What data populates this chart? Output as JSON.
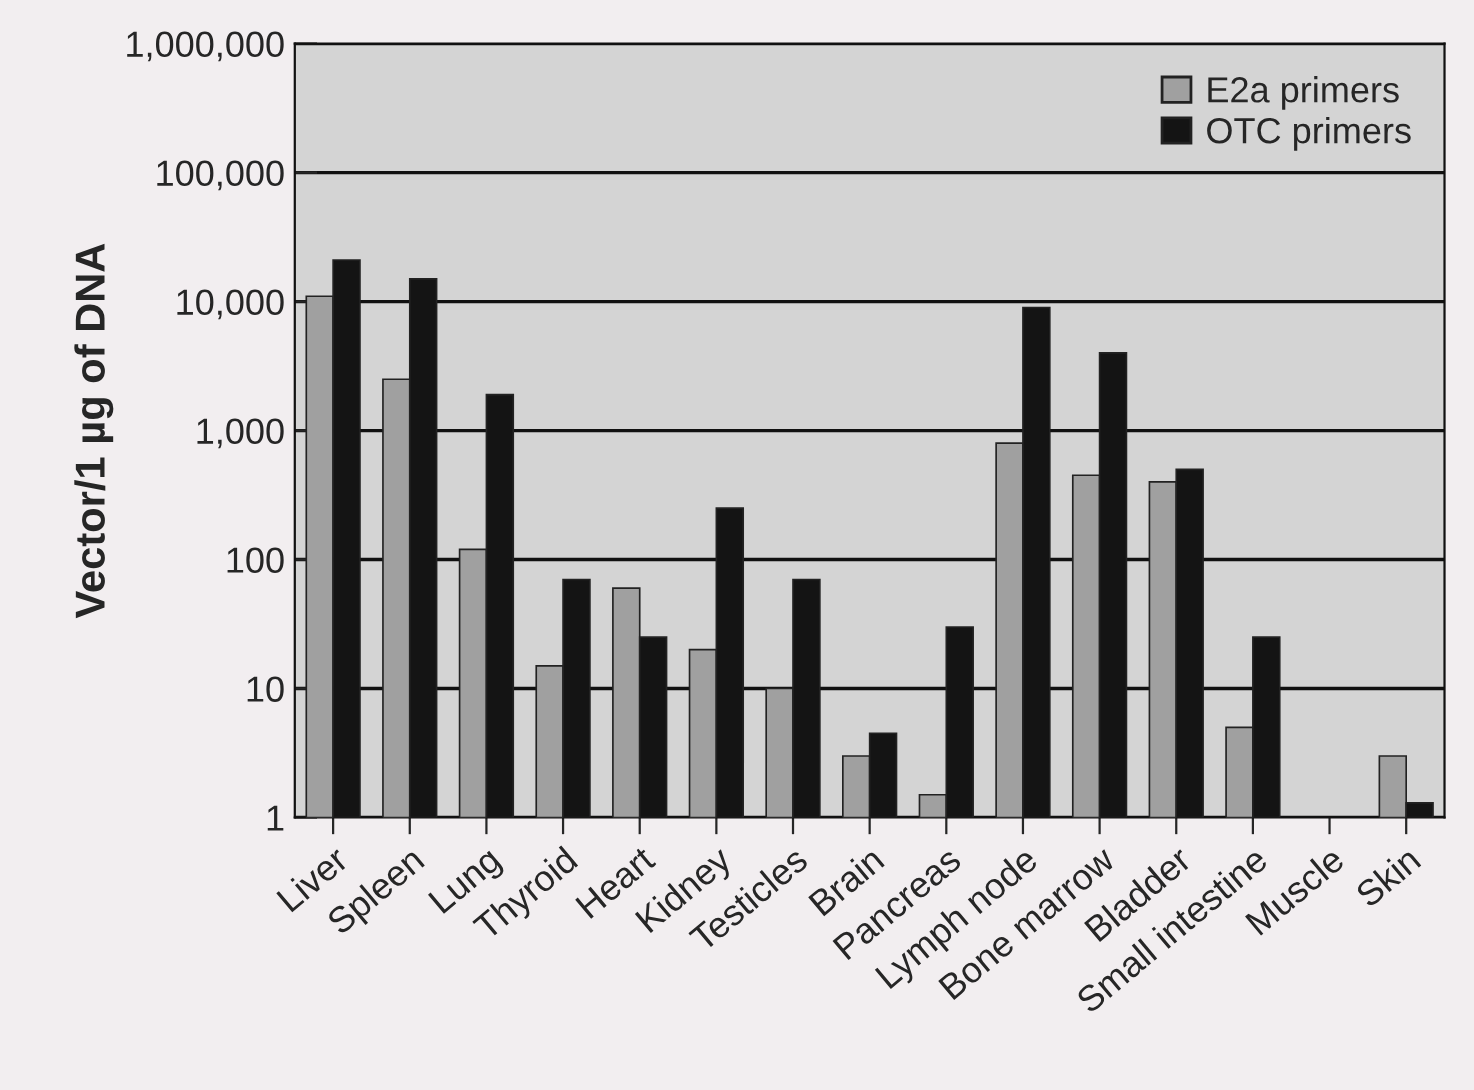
{
  "chart_data": {
    "type": "bar",
    "ylabel": "Vector/1 µg of DNA",
    "log": "y",
    "categories": [
      "Liver",
      "Spleen",
      "Lung",
      "Thyroid",
      "Heart",
      "Kidney",
      "Testicles",
      "Brain",
      "Pancreas",
      "Lymph node",
      "Bone marrow",
      "Bladder",
      "Small intestine",
      "Muscle",
      "Skin"
    ],
    "series": [
      {
        "name": "E2a primers",
        "color": "#a0a0a0",
        "values": [
          11000,
          2500,
          120,
          15,
          60,
          20,
          10,
          3,
          1.5,
          800,
          450,
          400,
          5,
          null,
          3
        ]
      },
      {
        "name": "OTC primers",
        "color": "#141414",
        "values": [
          21000,
          15000,
          1900,
          70,
          25,
          250,
          70,
          4.5,
          30,
          9000,
          4000,
          500,
          25,
          null,
          1.3
        ]
      }
    ],
    "ylim": [
      1,
      1000000
    ],
    "yticks": [
      {
        "value": 1,
        "label": "1"
      },
      {
        "value": 10,
        "label": "10"
      },
      {
        "value": 100,
        "label": "100"
      },
      {
        "value": 1000,
        "label": "1,000"
      },
      {
        "value": 10000,
        "label": "10,000"
      },
      {
        "value": 100000,
        "label": "100,000"
      },
      {
        "value": 1000000,
        "label": "1,000,000"
      }
    ],
    "grid": "y",
    "legend": "top right"
  }
}
